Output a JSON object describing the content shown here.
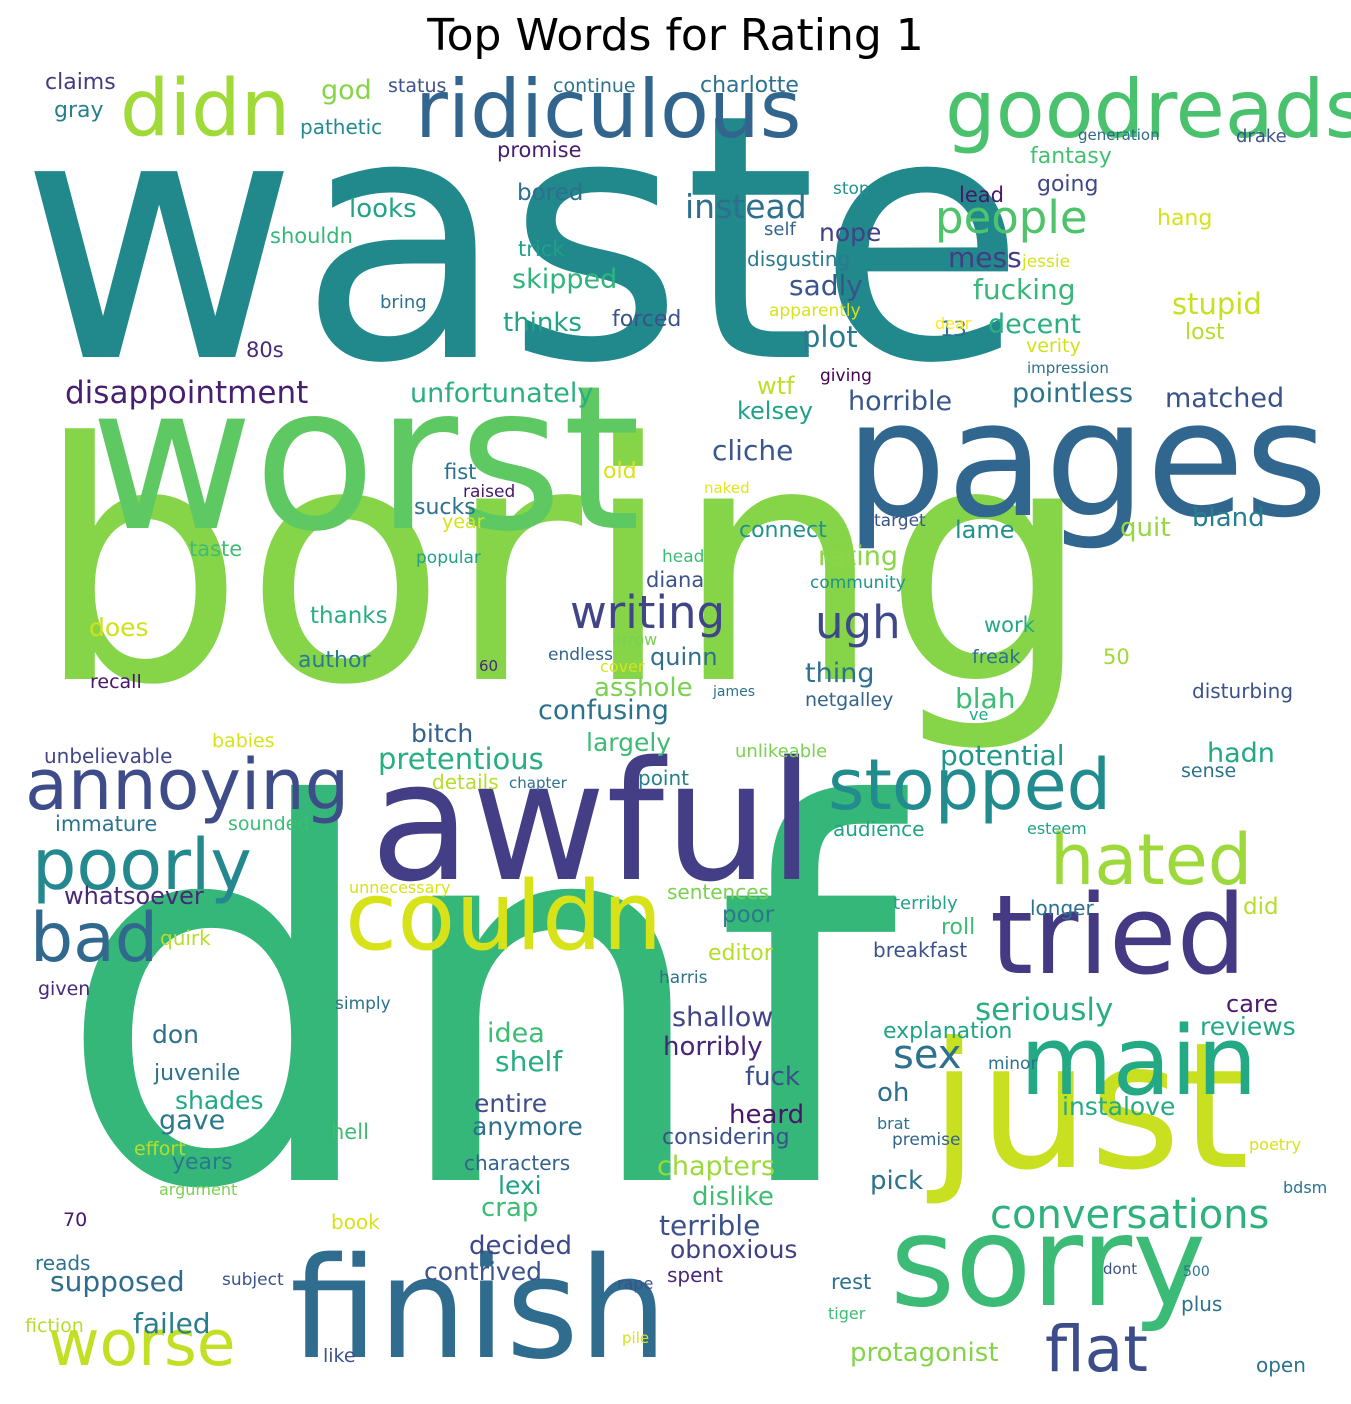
{
  "title": "Top Words for Rating 1",
  "words": [
    {
      "text": "waste",
      "color": "#21888c"
    },
    {
      "text": "boring",
      "color": "#86d549"
    },
    {
      "text": "dnf",
      "color": "#35b779"
    },
    {
      "text": "worst",
      "color": "#5ec962"
    },
    {
      "text": "pages",
      "color": "#31678e"
    },
    {
      "text": "awful",
      "color": "#433e85"
    },
    {
      "text": "just",
      "color": "#c8e020"
    },
    {
      "text": "finish",
      "color": "#2f6c8e"
    },
    {
      "text": "sorry",
      "color": "#3bbb75"
    },
    {
      "text": "tried",
      "color": "#443983"
    },
    {
      "text": "couldn",
      "color": "#d8e219"
    },
    {
      "text": "main",
      "color": "#23a983"
    },
    {
      "text": "goodreads",
      "color": "#4ac16d"
    },
    {
      "text": "ridiculous",
      "color": "#32658e"
    },
    {
      "text": "didn",
      "color": "#a0da39"
    },
    {
      "text": "annoying",
      "color": "#3e4c8a"
    },
    {
      "text": "stopped",
      "color": "#228b8d"
    },
    {
      "text": "poorly",
      "color": "#23898e"
    },
    {
      "text": "hated",
      "color": "#9dd93b"
    },
    {
      "text": "bad",
      "color": "#31688e"
    },
    {
      "text": "worse",
      "color": "#c2df23"
    },
    {
      "text": "flat",
      "color": "#3d4d8a"
    },
    {
      "text": "conversations",
      "color": "#2db27d"
    },
    {
      "text": "people",
      "color": "#4ec36b"
    },
    {
      "text": "instead",
      "color": "#2e6f8e"
    },
    {
      "text": "writing",
      "color": "#404588"
    },
    {
      "text": "ugh",
      "color": "#3e4989"
    },
    {
      "text": "disappointment",
      "color": "#481f70"
    },
    {
      "text": "unfortunately",
      "color": "#2ab07f"
    },
    {
      "text": "horrible",
      "color": "#39568c"
    },
    {
      "text": "pointless",
      "color": "#2c738e"
    },
    {
      "text": "matched",
      "color": "#3b518b"
    },
    {
      "text": "sex",
      "color": "#2d718e"
    },
    {
      "text": "seriously",
      "color": "#29af7f"
    },
    {
      "text": "pretentious",
      "color": "#28ae80"
    },
    {
      "text": "potential",
      "color": "#1f988b"
    },
    {
      "text": "cliche",
      "color": "#38588c"
    },
    {
      "text": "confusing",
      "color": "#2c728e"
    },
    {
      "text": "plot",
      "color": "#297a8e"
    },
    {
      "text": "sadly",
      "color": "#3a548c"
    },
    {
      "text": "fucking",
      "color": "#37b878"
    },
    {
      "text": "decent",
      "color": "#2ab07f"
    },
    {
      "text": "stupid",
      "color": "#c8e020"
    },
    {
      "text": "mess",
      "color": "#433d84"
    },
    {
      "text": "looks",
      "color": "#20a386"
    },
    {
      "text": "skipped",
      "color": "#2fb47c"
    },
    {
      "text": "thinks",
      "color": "#20a386"
    },
    {
      "text": "nope",
      "color": "#424086"
    },
    {
      "text": "kelsey",
      "color": "#1fa188"
    },
    {
      "text": "wtf",
      "color": "#bddf26"
    },
    {
      "text": "rating",
      "color": "#8bd646"
    },
    {
      "text": "thing",
      "color": "#2d718e"
    },
    {
      "text": "blah",
      "color": "#3dbc74"
    },
    {
      "text": "hadn",
      "color": "#22a884"
    },
    {
      "text": "bland",
      "color": "#277e8e"
    },
    {
      "text": "quit",
      "color": "#95d840"
    },
    {
      "text": "lame",
      "color": "#21918c"
    },
    {
      "text": "connect",
      "color": "#21918c"
    },
    {
      "text": "quinn",
      "color": "#2e6e8e"
    },
    {
      "text": "asshole",
      "color": "#7ad151"
    },
    {
      "text": "largely",
      "color": "#3dbc74"
    },
    {
      "text": "bitch",
      "color": "#33638d"
    },
    {
      "text": "supposed",
      "color": "#2f6c8e"
    },
    {
      "text": "failed",
      "color": "#287d8e"
    },
    {
      "text": "protagonist",
      "color": "#84d44b"
    },
    {
      "text": "shallow",
      "color": "#404588"
    },
    {
      "text": "horribly",
      "color": "#482677"
    },
    {
      "text": "care",
      "color": "#481b6d"
    },
    {
      "text": "reviews",
      "color": "#22a884"
    },
    {
      "text": "explanation",
      "color": "#20a386"
    },
    {
      "text": "instalove",
      "color": "#25ab82"
    },
    {
      "text": "fuck",
      "color": "#3c4f8a"
    },
    {
      "text": "oh",
      "color": "#2e6f8e"
    },
    {
      "text": "pick",
      "color": "#2c718e"
    },
    {
      "text": "dislike",
      "color": "#40bd72"
    },
    {
      "text": "terrible",
      "color": "#3b528b"
    },
    {
      "text": "obnoxious",
      "color": "#424186"
    },
    {
      "text": "decided",
      "color": "#3e4989"
    },
    {
      "text": "contrived",
      "color": "#3b528b"
    },
    {
      "text": "crap",
      "color": "#3dbc74"
    },
    {
      "text": "lexi",
      "color": "#1fa188"
    },
    {
      "text": "chapters",
      "color": "#9bd93c"
    },
    {
      "text": "considering",
      "color": "#3b518b"
    },
    {
      "text": "heard",
      "color": "#481769"
    },
    {
      "text": "entire",
      "color": "#3d4e8a"
    },
    {
      "text": "anymore",
      "color": "#2c728e"
    },
    {
      "text": "characters",
      "color": "#33628d"
    },
    {
      "text": "idea",
      "color": "#3dbc74"
    },
    {
      "text": "shelf",
      "color": "#27ad81"
    },
    {
      "text": "don",
      "color": "#2d708e"
    },
    {
      "text": "juvenile",
      "color": "#2c738e"
    },
    {
      "text": "shades",
      "color": "#22a884"
    },
    {
      "text": "gave",
      "color": "#2a788e"
    },
    {
      "text": "years",
      "color": "#2a788e"
    },
    {
      "text": "immature",
      "color": "#2c728e"
    },
    {
      "text": "whatsoever",
      "color": "#482878"
    },
    {
      "text": "unbelievable",
      "color": "#404688"
    },
    {
      "text": "does",
      "color": "#d0e11c"
    },
    {
      "text": "author",
      "color": "#287c8e"
    },
    {
      "text": "thanks",
      "color": "#29af7f"
    },
    {
      "text": "claims",
      "color": "#443a83"
    },
    {
      "text": "gray",
      "color": "#277f8e"
    },
    {
      "text": "god",
      "color": "#86d549"
    },
    {
      "text": "status",
      "color": "#3b528b"
    },
    {
      "text": "continue",
      "color": "#2c728e"
    },
    {
      "text": "charlotte",
      "color": "#2c728e"
    },
    {
      "text": "pathetic",
      "color": "#23898e"
    },
    {
      "text": "promise",
      "color": "#481c6e"
    },
    {
      "text": "generation",
      "color": "#31688e"
    },
    {
      "text": "drake",
      "color": "#3b528b"
    },
    {
      "text": "fantasy",
      "color": "#44bf70"
    },
    {
      "text": "bored",
      "color": "#2d708e"
    },
    {
      "text": "stop",
      "color": "#21918c"
    },
    {
      "text": "lead",
      "color": "#481769"
    },
    {
      "text": "going",
      "color": "#3f4889"
    },
    {
      "text": "hang",
      "color": "#d8e219"
    },
    {
      "text": "shouldn",
      "color": "#35b779"
    },
    {
      "text": "trick",
      "color": "#1fa188"
    },
    {
      "text": "self",
      "color": "#33638d"
    },
    {
      "text": "disgusting",
      "color": "#297a8e"
    },
    {
      "text": "jessie",
      "color": "#d5e21a"
    },
    {
      "text": "bring",
      "color": "#2c728e"
    },
    {
      "text": "forced",
      "color": "#3b528b"
    },
    {
      "text": "apparently",
      "color": "#d8e219"
    },
    {
      "text": "13",
      "color": "#2c728e"
    },
    {
      "text": "dear",
      "color": "#fde725"
    },
    {
      "text": "lost",
      "color": "#b5de2b"
    },
    {
      "text": "verity",
      "color": "#d0e11c"
    },
    {
      "text": "80s",
      "color": "#482878"
    },
    {
      "text": "giving",
      "color": "#440154"
    },
    {
      "text": "impression",
      "color": "#2c728e"
    },
    {
      "text": "old",
      "color": "#d8e219"
    },
    {
      "text": "fist",
      "color": "#2c728e"
    },
    {
      "text": "raised",
      "color": "#481769"
    },
    {
      "text": "naked",
      "color": "#e5e419"
    },
    {
      "text": "sucks",
      "color": "#2c728e"
    },
    {
      "text": "year",
      "color": "#d8e219"
    },
    {
      "text": "target",
      "color": "#3b528b"
    },
    {
      "text": "taste",
      "color": "#40bd72"
    },
    {
      "text": "popular",
      "color": "#1fa188"
    },
    {
      "text": "head",
      "color": "#3dbc74"
    },
    {
      "text": "diana",
      "color": "#3b528b"
    },
    {
      "text": "community",
      "color": "#21918c"
    },
    {
      "text": "arrow",
      "color": "#7ad151"
    },
    {
      "text": "work",
      "color": "#22a884"
    },
    {
      "text": "50",
      "color": "#a0da39"
    },
    {
      "text": "60",
      "color": "#482878"
    },
    {
      "text": "endless",
      "color": "#33638d"
    },
    {
      "text": "cover",
      "color": "#d8e219"
    },
    {
      "text": "freak",
      "color": "#2c728e"
    },
    {
      "text": "recall",
      "color": "#481769"
    },
    {
      "text": "james",
      "color": "#2c728e"
    },
    {
      "text": "netgalley",
      "color": "#33638d"
    },
    {
      "text": "disturbing",
      "color": "#3b528b"
    },
    {
      "text": "ve",
      "color": "#22a884"
    },
    {
      "text": "babies",
      "color": "#d8e219"
    },
    {
      "text": "unlikeable",
      "color": "#7ad151"
    },
    {
      "text": "details",
      "color": "#b5de2b"
    },
    {
      "text": "chapter",
      "color": "#2c728e"
    },
    {
      "text": "point",
      "color": "#277f8e"
    },
    {
      "text": "sense",
      "color": "#2c728e"
    },
    {
      "text": "sounded",
      "color": "#3dbc74"
    },
    {
      "text": "audience",
      "color": "#20a386"
    },
    {
      "text": "esteem",
      "color": "#1fa188"
    },
    {
      "text": "unnecessary",
      "color": "#d8e219"
    },
    {
      "text": "sentences",
      "color": "#7ad151"
    },
    {
      "text": "poor",
      "color": "#2a788e"
    },
    {
      "text": "terribly",
      "color": "#20a386"
    },
    {
      "text": "longer",
      "color": "#2c728e"
    },
    {
      "text": "did",
      "color": "#b5de2b"
    },
    {
      "text": "roll",
      "color": "#3dbc74"
    },
    {
      "text": "quirk",
      "color": "#b5de2b"
    },
    {
      "text": "editor",
      "color": "#b5de2b"
    },
    {
      "text": "breakfast",
      "color": "#3b528b"
    },
    {
      "text": "harris",
      "color": "#2c728e"
    },
    {
      "text": "given",
      "color": "#482878"
    },
    {
      "text": "simply",
      "color": "#2c728e"
    },
    {
      "text": "minor",
      "color": "#2c728e"
    },
    {
      "text": "hell",
      "color": "#3dbc74"
    },
    {
      "text": "effort",
      "color": "#b5de2b"
    },
    {
      "text": "brat",
      "color": "#2c728e"
    },
    {
      "text": "premise",
      "color": "#33638d"
    },
    {
      "text": "poetry",
      "color": "#d8e219"
    },
    {
      "text": "argument",
      "color": "#7ad151"
    },
    {
      "text": "bdsm",
      "color": "#2c728e"
    },
    {
      "text": "70",
      "color": "#481769"
    },
    {
      "text": "book",
      "color": "#d8e219"
    },
    {
      "text": "reads",
      "color": "#2c728e"
    },
    {
      "text": "subject",
      "color": "#3b528b"
    },
    {
      "text": "rape",
      "color": "#3b528b"
    },
    {
      "text": "spent",
      "color": "#482878"
    },
    {
      "text": "rest",
      "color": "#2c728e"
    },
    {
      "text": "dont",
      "color": "#3b528b"
    },
    {
      "text": "500",
      "color": "#2c728e"
    },
    {
      "text": "tiger",
      "color": "#3dbc74"
    },
    {
      "text": "plus",
      "color": "#2c728e"
    },
    {
      "text": "fiction",
      "color": "#b5de2b"
    },
    {
      "text": "like",
      "color": "#3b528b"
    },
    {
      "text": "pile",
      "color": "#d8e219"
    },
    {
      "text": "open",
      "color": "#2c728e"
    }
  ]
}
